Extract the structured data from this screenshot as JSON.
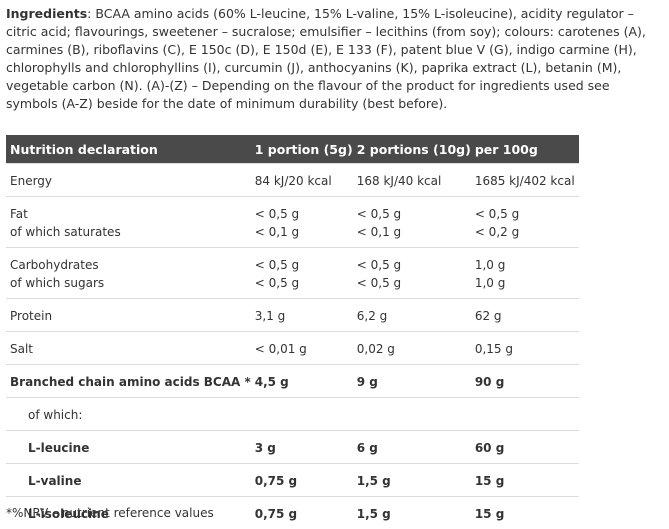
{
  "ingredients": {
    "label": "Ingredients",
    "text": ": BCAA amino acids (60% L-leucine, 15% L-valine, 15% L-isoleucine), acidity regulator – citric acid; flavourings, sweetener – sucralose; emulsifier – lecithins (from soy); colours: carotenes (A), carmines (B), riboflavins (C), E 150c (D), E 150d (E), E 133 (F), patent blue V (G), indigo carmine (H), chlorophylls and chlorophyllins (I), curcumin (J), anthocyanins (K), paprika extract (L), betanin (M), vegetable carbon (N). (A)-(Z) – Depending on the flavour of the product for ingredients used see symbols (A-Z) beside for the date of minimum durability (best before)."
  },
  "table": {
    "headers": [
      "Nutrition declaration",
      "1 portion (5g)",
      "2 portions (10g)",
      "per 100g"
    ],
    "rows": [
      {
        "cells": [
          "Energy",
          "84 kJ/20 kcal",
          "168 kJ/40 kcal",
          "1685 kJ/402 kcal"
        ]
      },
      {
        "cells": [
          "Fat",
          "< 0,5 g",
          "< 0,5 g",
          "< 0,5 g"
        ],
        "sub": [
          "of which saturates",
          "< 0,1 g",
          "< 0,1 g",
          "< 0,2 g"
        ]
      },
      {
        "cells": [
          "Carbohydrates",
          "< 0,5 g",
          "< 0,5 g",
          "1,0 g"
        ],
        "sub": [
          "of which sugars",
          "< 0,5 g",
          "< 0,5 g",
          "1,0 g"
        ]
      },
      {
        "cells": [
          "Protein",
          "3,1 g",
          "6,2 g",
          "62 g"
        ]
      },
      {
        "cells": [
          "Salt",
          "< 0,01 g",
          "0,02 g",
          "0,15 g"
        ]
      },
      {
        "cells": [
          "Branched chain amino acids BCAA *",
          "4,5 g",
          "9 g",
          "90 g"
        ],
        "bold": true
      },
      {
        "cells": [
          "of which:",
          "",
          "",
          ""
        ],
        "indent": true
      },
      {
        "cells": [
          "L-leucine",
          "3 g",
          "6 g",
          "60 g"
        ],
        "bold": true,
        "indent": true
      },
      {
        "cells": [
          "L-valine",
          "0,75 g",
          "1,5 g",
          "15 g"
        ],
        "bold": true,
        "indent": true
      },
      {
        "cells": [
          "L-isoleucine",
          "0,75 g",
          "1,5 g",
          "15 g"
        ],
        "bold": true,
        "indent": true
      }
    ]
  },
  "footnote": "*%NRV – nutrient reference values"
}
